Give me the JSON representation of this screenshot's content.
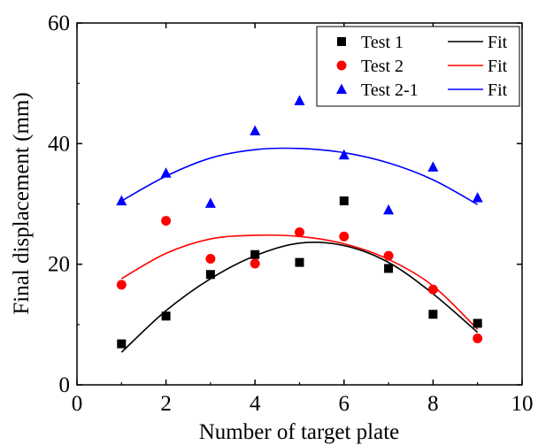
{
  "chart_data": {
    "type": "scatter",
    "xlabel": "Number of target plate",
    "ylabel": "Final displacement (mm)",
    "xlim": [
      0,
      10
    ],
    "ylim": [
      0,
      60
    ],
    "xticks": [
      "0",
      "2",
      "4",
      "6",
      "8",
      "10"
    ],
    "yticks": [
      "0",
      "20",
      "40",
      "60"
    ],
    "grid": false,
    "legend_position": "top-right",
    "series": [
      {
        "name": "Test 1",
        "marker": "square",
        "color": "#000000",
        "x": [
          1,
          2,
          3,
          4,
          5,
          6,
          7,
          8,
          9
        ],
        "y": [
          6.8,
          11.4,
          18.3,
          21.6,
          20.3,
          30.5,
          19.3,
          11.7,
          10.2
        ]
      },
      {
        "name": "Test 2",
        "marker": "circle",
        "color": "#ff0000",
        "x": [
          1,
          2,
          3,
          4,
          5,
          6,
          7,
          8,
          9
        ],
        "y": [
          16.6,
          27.2,
          20.9,
          20.1,
          25.3,
          24.6,
          21.4,
          15.8,
          7.7
        ]
      },
      {
        "name": "Test 2-1",
        "marker": "triangle",
        "color": "#0000ff",
        "x": [
          1,
          2,
          3,
          4,
          5,
          6,
          7,
          8,
          9
        ],
        "y": [
          30.5,
          35.1,
          30.1,
          42.1,
          47.1,
          38.1,
          29.0,
          36.1,
          31.0
        ]
      }
    ],
    "fits": [
      {
        "name": "Fit",
        "color": "#000000",
        "x": [
          1,
          2,
          3,
          4,
          5,
          6,
          7,
          8,
          9
        ],
        "y": [
          5.4,
          12.3,
          17.6,
          21.4,
          23.5,
          23.1,
          20.3,
          15.1,
          8.7
        ]
      },
      {
        "name": "Fit",
        "color": "#ff0000",
        "x": [
          1,
          2,
          3,
          4,
          5,
          6,
          7,
          8,
          9
        ],
        "y": [
          17.6,
          21.8,
          24.2,
          24.8,
          24.6,
          23.4,
          20.8,
          16.4,
          9.2
        ]
      },
      {
        "name": "Fit",
        "color": "#0000ff",
        "x": [
          1,
          2,
          3,
          4,
          5,
          6,
          7,
          8,
          9
        ],
        "y": [
          30.5,
          34.6,
          37.6,
          39.0,
          39.2,
          38.5,
          36.8,
          34.0,
          29.9
        ]
      }
    ],
    "legend": [
      {
        "marker_label": "Test 1",
        "line_label": "Fit"
      },
      {
        "marker_label": "Test 2",
        "line_label": "Fit"
      },
      {
        "marker_label": "Test 2-1",
        "line_label": "Fit"
      }
    ]
  }
}
